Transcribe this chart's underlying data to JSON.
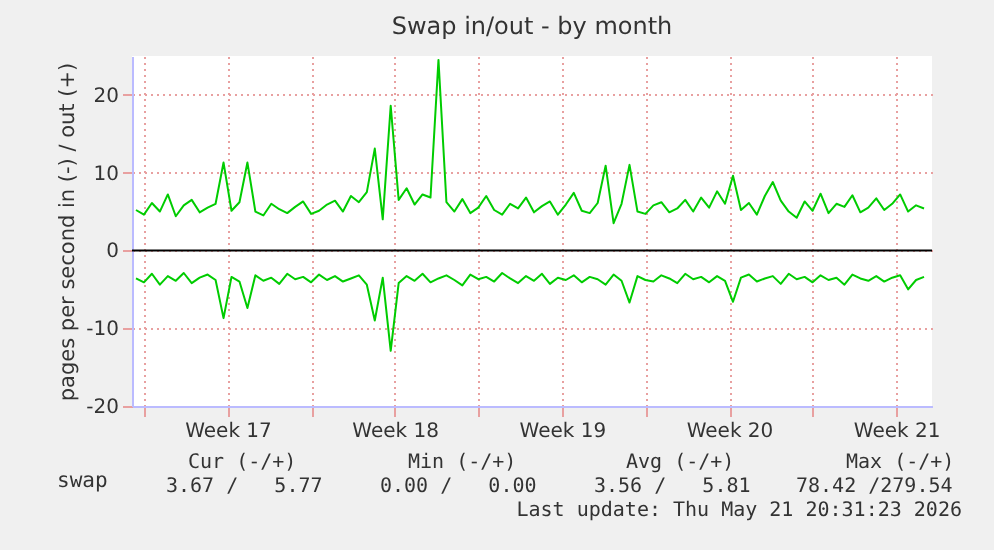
{
  "chart_data": {
    "type": "line",
    "title": "Swap in/out - by month",
    "ylabel": "pages per second in (-) / out (+)",
    "x": [
      "2026-04-19T16:00",
      "2026-04-20T00:00",
      "2026-04-20T08:00",
      "2026-04-20T16:00",
      "2026-04-21T00:00",
      "2026-04-21T08:00",
      "2026-04-21T16:00",
      "2026-04-22T00:00",
      "2026-04-22T08:00",
      "2026-04-22T16:00",
      "2026-04-23T00:00",
      "2026-04-23T08:00",
      "2026-04-23T16:00",
      "2026-04-24T00:00",
      "2026-04-24T08:00",
      "2026-04-24T16:00",
      "2026-04-25T00:00",
      "2026-04-25T08:00",
      "2026-04-25T16:00",
      "2026-04-26T00:00",
      "2026-04-26T08:00",
      "2026-04-26T16:00",
      "2026-04-27T00:00",
      "2026-04-27T08:00",
      "2026-04-27T16:00",
      "2026-04-28T00:00",
      "2026-04-28T08:00",
      "2026-04-28T16:00",
      "2026-04-29T00:00",
      "2026-04-29T08:00",
      "2026-04-29T16:00",
      "2026-04-30T00:00",
      "2026-04-30T08:00",
      "2026-04-30T16:00",
      "2026-05-01T00:00",
      "2026-05-01T08:00",
      "2026-05-01T16:00",
      "2026-05-02T00:00",
      "2026-05-02T08:00",
      "2026-05-02T16:00",
      "2026-05-03T00:00",
      "2026-05-03T08:00",
      "2026-05-03T16:00",
      "2026-05-04T00:00",
      "2026-05-04T08:00",
      "2026-05-04T16:00",
      "2026-05-05T00:00",
      "2026-05-05T08:00",
      "2026-05-05T16:00",
      "2026-05-06T00:00",
      "2026-05-06T08:00",
      "2026-05-06T16:00",
      "2026-05-07T00:00",
      "2026-05-07T08:00",
      "2026-05-07T16:00",
      "2026-05-08T00:00",
      "2026-05-08T08:00",
      "2026-05-08T16:00",
      "2026-05-09T00:00",
      "2026-05-09T08:00",
      "2026-05-09T16:00",
      "2026-05-10T00:00",
      "2026-05-10T08:00",
      "2026-05-10T16:00",
      "2026-05-11T00:00",
      "2026-05-11T08:00",
      "2026-05-11T16:00",
      "2026-05-12T00:00",
      "2026-05-12T08:00",
      "2026-05-12T16:00",
      "2026-05-13T00:00",
      "2026-05-13T08:00",
      "2026-05-13T16:00",
      "2026-05-14T00:00",
      "2026-05-14T08:00",
      "2026-05-14T16:00",
      "2026-05-15T00:00",
      "2026-05-15T08:00",
      "2026-05-15T16:00",
      "2026-05-16T00:00",
      "2026-05-16T08:00",
      "2026-05-16T16:00",
      "2026-05-17T00:00",
      "2026-05-17T08:00",
      "2026-05-17T16:00",
      "2026-05-18T00:00",
      "2026-05-18T08:00",
      "2026-05-18T16:00",
      "2026-05-19T00:00",
      "2026-05-19T08:00",
      "2026-05-19T16:00",
      "2026-05-20T00:00",
      "2026-05-20T08:00",
      "2026-05-20T16:00",
      "2026-05-21T00:00",
      "2026-05-21T08:00",
      "2026-05-21T16:00",
      "2026-05-22T00:00",
      "2026-05-22T08:00",
      "2026-05-22T16:00"
    ],
    "series": [
      {
        "name": "swap",
        "color": "#00cc00",
        "values": [
          5.2,
          4.6,
          6.1,
          5.0,
          7.2,
          4.4,
          5.8,
          6.5,
          4.9,
          5.5,
          6.0,
          11.3,
          5.1,
          6.2,
          11.3,
          5.0,
          4.5,
          6.0,
          5.3,
          4.8,
          5.6,
          6.3,
          4.7,
          5.1,
          5.9,
          6.4,
          5.0,
          7.0,
          6.2,
          7.5,
          13.1,
          4.0,
          18.6,
          6.5,
          8.0,
          5.9,
          7.2,
          6.8,
          24.5,
          6.2,
          5.0,
          6.6,
          4.8,
          5.5,
          7.0,
          5.2,
          4.6,
          6.0,
          5.4,
          6.8,
          4.9,
          5.7,
          6.3,
          4.6,
          5.9,
          7.4,
          5.1,
          4.8,
          6.1,
          10.9,
          3.5,
          6.0,
          11.0,
          5.0,
          4.7,
          5.8,
          6.2,
          4.9,
          5.4,
          6.5,
          5.0,
          6.8,
          5.5,
          7.6,
          6.0,
          9.6,
          5.2,
          6.1,
          4.6,
          7.0,
          8.8,
          6.4,
          5.0,
          4.2,
          6.3,
          5.1,
          7.3,
          4.8,
          6.0,
          5.6,
          7.1,
          4.9,
          5.5,
          6.7,
          5.2,
          6.0,
          7.2,
          5.0,
          5.8,
          5.4
        ]
      },
      {
        "color": "#00cc00",
        "values": [
          -3.6,
          -4.1,
          -3.0,
          -4.4,
          -3.3,
          -3.9,
          -2.9,
          -4.2,
          -3.5,
          -3.1,
          -3.8,
          -8.7,
          -3.4,
          -4.0,
          -7.4,
          -3.2,
          -3.9,
          -3.5,
          -4.3,
          -3.0,
          -3.7,
          -3.4,
          -4.1,
          -3.1,
          -3.8,
          -3.3,
          -4.0,
          -3.6,
          -3.2,
          -4.4,
          -9.0,
          -3.5,
          -12.9,
          -4.2,
          -3.3,
          -3.9,
          -3.0,
          -4.1,
          -3.6,
          -3.2,
          -3.8,
          -4.5,
          -3.1,
          -3.7,
          -3.4,
          -4.0,
          -2.9,
          -3.6,
          -4.2,
          -3.3,
          -3.9,
          -3.0,
          -4.3,
          -3.5,
          -3.8,
          -3.2,
          -4.1,
          -3.4,
          -3.7,
          -4.4,
          -3.1,
          -3.9,
          -6.7,
          -3.3,
          -3.8,
          -4.0,
          -3.2,
          -3.6,
          -4.2,
          -3.0,
          -3.7,
          -3.4,
          -4.1,
          -3.3,
          -3.9,
          -6.6,
          -3.5,
          -3.1,
          -4.0,
          -3.6,
          -3.3,
          -4.3,
          -3.0,
          -3.7,
          -3.4,
          -4.1,
          -3.2,
          -3.8,
          -3.5,
          -4.4,
          -3.1,
          -3.6,
          -3.9,
          -3.3,
          -4.0,
          -3.5,
          -3.2,
          -5.0,
          -3.8,
          -3.4
        ]
      }
    ],
    "xlim": [
      "2026-04-19T12:00",
      "2026-05-23T00:00"
    ],
    "xticks": [
      {
        "value": "2026-04-20T00:00",
        "label": null
      },
      {
        "value": "2026-04-23T12:00",
        "label": "Week 17"
      },
      {
        "value": "2026-04-27T00:00",
        "label": null
      },
      {
        "value": "2026-04-30T12:00",
        "label": "Week 18"
      },
      {
        "value": "2026-05-04T00:00",
        "label": null
      },
      {
        "value": "2026-05-07T12:00",
        "label": "Week 19"
      },
      {
        "value": "2026-05-11T00:00",
        "label": null
      },
      {
        "value": "2026-05-14T12:00",
        "label": "Week 20"
      },
      {
        "value": "2026-05-18T00:00",
        "label": null
      },
      {
        "value": "2026-05-21T12:00",
        "label": "Week 21"
      }
    ],
    "ylim": [
      -20,
      25
    ],
    "yticks": [
      -20,
      -10,
      0,
      10,
      20
    ],
    "ref_lines": [
      {
        "axis": "y",
        "value": 0,
        "color": "#000000"
      }
    ],
    "grid": true,
    "legend": "bottom left",
    "annotations": [
      "Cur (-/+)",
      "Min (-/+)",
      "Avg (-/+)",
      "Max (-/+)",
      "3.67 /   5.77",
      "0.00 /   0.00",
      "3.56 /   5.81",
      "78.42 /279.54",
      "Last update: Thu May 21 20:31:23 2026"
    ]
  }
}
